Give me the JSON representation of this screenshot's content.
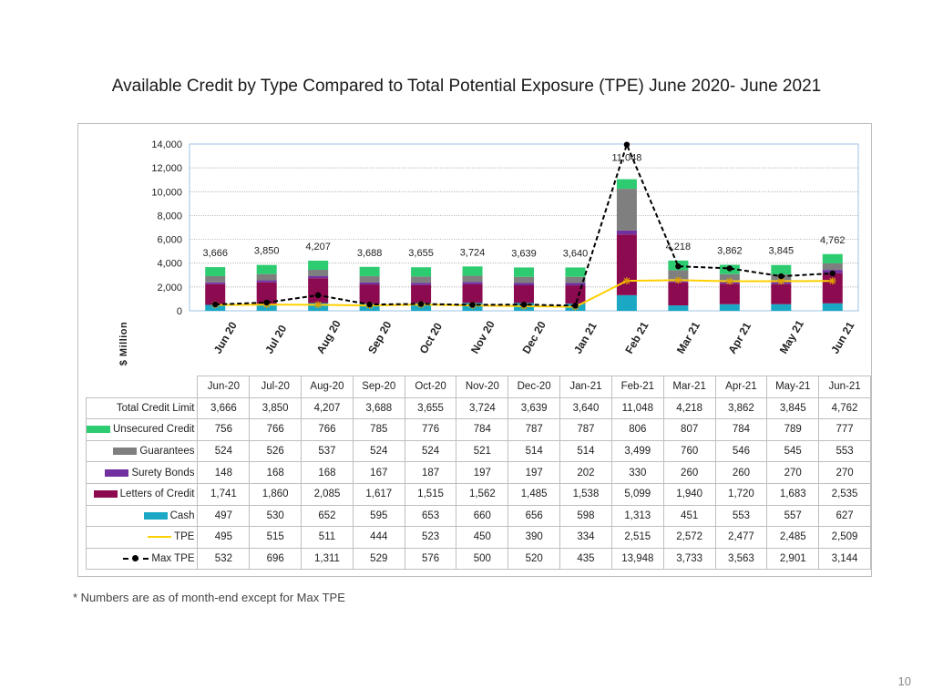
{
  "title": "Available Credit by Type Compared to Total Potential Exposure (TPE) June 2020- June 2021",
  "footnote": "* Numbers are as of month-end except for Max TPE",
  "page_number": "10",
  "colors": {
    "unsecured_credit": "#2ecc71",
    "guarantees": "#7f7f7f",
    "surety_bonds": "#7030a0",
    "letters_of_credit": "#8b0a50",
    "cash": "#1aa8c4",
    "tpe": "#ffd000",
    "max_tpe": "#000000"
  },
  "chart_data": {
    "type": "bar",
    "stacked": true,
    "title": "Available Credit by Type Compared to Total Potential Exposure (TPE) June 2020- June 2021",
    "xlabel": "",
    "ylabel": "$ Million",
    "ylim": [
      0,
      14000
    ],
    "yticks": [
      "0",
      "2,000",
      "4,000",
      "6,000",
      "8,000",
      "10,000",
      "12,000",
      "14,000"
    ],
    "grid": true,
    "categories": [
      "Jun-20",
      "Jul-20",
      "Aug-20",
      "Sep-20",
      "Oct-20",
      "Nov-20",
      "Dec-20",
      "Jan-21",
      "Feb-21",
      "Mar-21",
      "Apr-21",
      "May-21",
      "Jun-21"
    ],
    "axis_categories": [
      "Jun 20",
      "Jul 20",
      "Aug 20",
      "Sep 20",
      "Oct 20",
      "Nov 20",
      "Dec 20",
      "Jan 21",
      "Feb 21",
      "Mar 21",
      "Apr 21",
      "May 21",
      "Jun 21"
    ],
    "total_credit_limit": {
      "name": "Total Credit Limit",
      "values": [
        3666,
        3850,
        4207,
        3688,
        3655,
        3724,
        3639,
        3640,
        11048,
        4218,
        3862,
        3845,
        4762
      ],
      "labels": [
        "3,666",
        "3,850",
        "4,207",
        "3,688",
        "3,655",
        "3,724",
        "3,639",
        "3,640",
        "11,048",
        "4,218",
        "3,862",
        "3,845",
        "4,762"
      ]
    },
    "series": [
      {
        "name": "Unsecured Credit",
        "key": "unsecured_credit",
        "kind": "bar",
        "values": [
          756,
          766,
          766,
          785,
          776,
          784,
          787,
          787,
          806,
          807,
          784,
          789,
          777
        ],
        "labels": [
          "756",
          "766",
          "766",
          "785",
          "776",
          "784",
          "787",
          "787",
          "806",
          "807",
          "784",
          "789",
          "777"
        ]
      },
      {
        "name": "Guarantees",
        "key": "guarantees",
        "kind": "bar",
        "values": [
          524,
          526,
          537,
          524,
          524,
          521,
          514,
          514,
          3499,
          760,
          546,
          545,
          553
        ],
        "labels": [
          "524",
          "526",
          "537",
          "524",
          "524",
          "521",
          "514",
          "514",
          "3,499",
          "760",
          "546",
          "545",
          "553"
        ]
      },
      {
        "name": "Surety Bonds",
        "key": "surety_bonds",
        "kind": "bar",
        "values": [
          148,
          168,
          168,
          167,
          187,
          197,
          197,
          202,
          330,
          260,
          260,
          270,
          270
        ],
        "labels": [
          "148",
          "168",
          "168",
          "167",
          "187",
          "197",
          "197",
          "202",
          "330",
          "260",
          "260",
          "270",
          "270"
        ]
      },
      {
        "name": "Letters of Credit",
        "key": "letters_of_credit",
        "kind": "bar",
        "values": [
          1741,
          1860,
          2085,
          1617,
          1515,
          1562,
          1485,
          1538,
          5099,
          1940,
          1720,
          1683,
          2535
        ],
        "labels": [
          "1,741",
          "1,860",
          "2,085",
          "1,617",
          "1,515",
          "1,562",
          "1,485",
          "1,538",
          "5,099",
          "1,940",
          "1,720",
          "1,683",
          "2,535"
        ]
      },
      {
        "name": "Cash",
        "key": "cash",
        "kind": "bar",
        "values": [
          497,
          530,
          652,
          595,
          653,
          660,
          656,
          598,
          1313,
          451,
          553,
          557,
          627
        ],
        "labels": [
          "497",
          "530",
          "652",
          "595",
          "653",
          "660",
          "656",
          "598",
          "1,313",
          "451",
          "553",
          "557",
          "627"
        ]
      },
      {
        "name": "TPE",
        "key": "tpe",
        "kind": "line",
        "values": [
          495,
          515,
          511,
          444,
          523,
          450,
          390,
          334,
          2515,
          2572,
          2477,
          2485,
          2509
        ],
        "labels": [
          "495",
          "515",
          "511",
          "444",
          "523",
          "450",
          "390",
          "334",
          "2,515",
          "2,572",
          "2,477",
          "2,485",
          "2,509"
        ]
      },
      {
        "name": "Max TPE",
        "key": "max_tpe",
        "kind": "dashed-line",
        "values": [
          532,
          696,
          1311,
          529,
          576,
          500,
          520,
          435,
          13948,
          3733,
          3563,
          2901,
          3144
        ],
        "labels": [
          "532",
          "696",
          "1,311",
          "529",
          "576",
          "500",
          "520",
          "435",
          "13,948",
          "3,733",
          "3,563",
          "2,901",
          "3,144"
        ]
      }
    ]
  }
}
